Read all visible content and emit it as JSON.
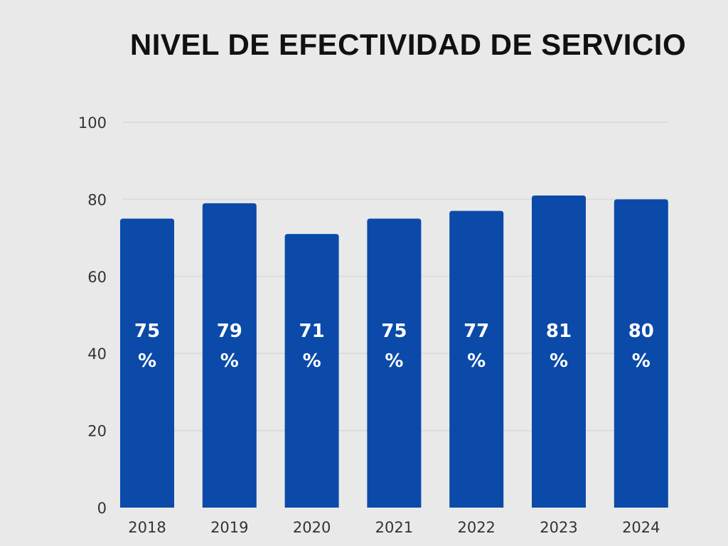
{
  "chart_data": {
    "type": "bar",
    "title": "NIVEL DE EFECTIVIDAD DE SERVICIO",
    "categories": [
      "2018",
      "2019",
      "2020",
      "2021",
      "2022",
      "2023",
      "2024"
    ],
    "values": [
      75,
      79,
      71,
      75,
      77,
      81,
      80
    ],
    "data_labels": [
      [
        "75",
        "%"
      ],
      [
        "79",
        "%"
      ],
      [
        "71",
        "%"
      ],
      [
        "75",
        "%"
      ],
      [
        "77",
        "%"
      ],
      [
        "81",
        "%"
      ],
      [
        "80",
        "%"
      ]
    ],
    "xlabel": "",
    "ylabel": "",
    "ylim": [
      0,
      100
    ],
    "yticks": [
      "0",
      "20",
      "40",
      "60",
      "80",
      "100"
    ],
    "grid": true,
    "colors": {
      "bar": "#0b4aa8",
      "background": "#e9e9e9",
      "grid": "#dcdcdc",
      "label": "#ffffff"
    }
  }
}
